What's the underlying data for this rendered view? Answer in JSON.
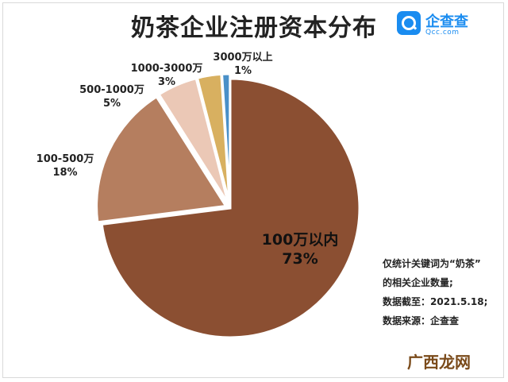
{
  "chart_data": {
    "type": "pie",
    "title": "奶茶企业注册资本分布",
    "slices": [
      {
        "label": "100万以内",
        "pct_label": "73%",
        "value": 73,
        "color": "#8b4f32"
      },
      {
        "label": "100-500万",
        "pct_label": "18%",
        "value": 18,
        "color": "#b57e5f"
      },
      {
        "label": "500-1000万",
        "pct_label": "5%",
        "value": 5,
        "color": "#ebc8b6"
      },
      {
        "label": "1000-3000万",
        "pct_label": "3%",
        "value": 3,
        "color": "#d8b060"
      },
      {
        "label": "3000万以上",
        "pct_label": "1%",
        "value": 1,
        "color": "#4a90c8"
      }
    ]
  },
  "logo": {
    "name": "企查查",
    "domain": "Qcc.com"
  },
  "notes": [
    "仅统计关键词为“奶茶”",
    "的相关企业数量;",
    "数据截至：2021.5.18;",
    "数据来源：企查查"
  ],
  "watermark": "广西龙网"
}
